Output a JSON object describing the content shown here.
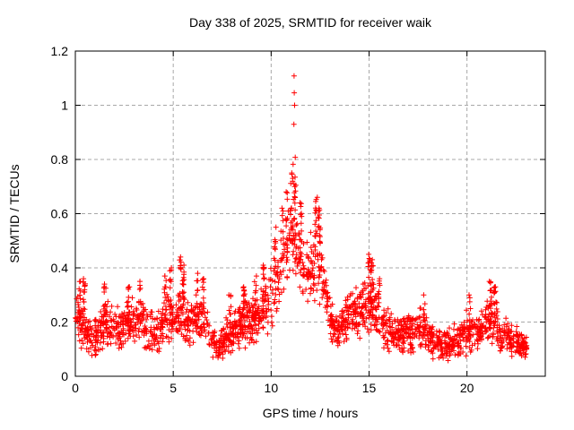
{
  "window": {
    "title": "Day 338 of 2025, SRMTID for receiver waik"
  },
  "colors": {
    "marker": "#ff0000",
    "border": "#000000",
    "grid": "#a8a8a8",
    "background": "#ffffff",
    "text": "#000000"
  },
  "chart_data": {
    "type": "scatter",
    "title": "Day 338 of 2025, SRMTID for receiver waik",
    "xlabel": "GPS time / hours",
    "ylabel": "SRMTID / TECUs",
    "xlim": [
      0,
      24
    ],
    "ylim": [
      0,
      1.2
    ],
    "xticks": [
      0,
      5,
      10,
      15,
      20
    ],
    "xtick_labels": [
      "0",
      "5",
      "10",
      "15",
      "20"
    ],
    "yticks": [
      0,
      0.2,
      0.4,
      0.6,
      0.8,
      1.0,
      1.2
    ],
    "ytick_labels": [
      "0",
      "0.2",
      "0.4",
      "0.6",
      "0.8",
      "1",
      "1.2"
    ],
    "grid": true,
    "grid_style": "dashed",
    "legend": false,
    "marker": {
      "symbol": "plus",
      "color": "#ff0000",
      "size": 7
    },
    "series_name": "SRMTID",
    "time_coverage_hours": [
      0,
      23.05
    ],
    "peak": {
      "t": 11.17,
      "value": 1.11
    },
    "point_count_estimate": 2300,
    "render_seed": 1338,
    "base_point_count": 2000,
    "band_envelope": [
      [
        0.0,
        0.1,
        0.31
      ],
      [
        0.5,
        0.1,
        0.28
      ],
      [
        0.9,
        0.07,
        0.2
      ],
      [
        1.3,
        0.1,
        0.26
      ],
      [
        1.6,
        0.11,
        0.3
      ],
      [
        2.0,
        0.1,
        0.24
      ],
      [
        2.4,
        0.1,
        0.27
      ],
      [
        2.8,
        0.11,
        0.28
      ],
      [
        3.2,
        0.11,
        0.3
      ],
      [
        3.6,
        0.09,
        0.26
      ],
      [
        4.0,
        0.08,
        0.24
      ],
      [
        4.5,
        0.1,
        0.31
      ],
      [
        5.0,
        0.1,
        0.28
      ],
      [
        5.4,
        0.12,
        0.36
      ],
      [
        5.8,
        0.1,
        0.27
      ],
      [
        6.2,
        0.11,
        0.33
      ],
      [
        6.6,
        0.1,
        0.28
      ],
      [
        7.0,
        0.07,
        0.2
      ],
      [
        7.3,
        0.06,
        0.15
      ],
      [
        7.7,
        0.08,
        0.21
      ],
      [
        8.2,
        0.09,
        0.25
      ],
      [
        8.7,
        0.1,
        0.28
      ],
      [
        9.1,
        0.11,
        0.3
      ],
      [
        9.5,
        0.13,
        0.32
      ],
      [
        10.0,
        0.17,
        0.4
      ],
      [
        10.4,
        0.24,
        0.5
      ],
      [
        10.8,
        0.33,
        0.6
      ],
      [
        11.1,
        0.38,
        0.65
      ],
      [
        11.4,
        0.33,
        0.6
      ],
      [
        11.8,
        0.27,
        0.53
      ],
      [
        12.1,
        0.26,
        0.52
      ],
      [
        12.4,
        0.28,
        0.58
      ],
      [
        12.7,
        0.22,
        0.45
      ],
      [
        13.0,
        0.13,
        0.3
      ],
      [
        13.4,
        0.1,
        0.22
      ],
      [
        13.8,
        0.12,
        0.28
      ],
      [
        14.2,
        0.14,
        0.32
      ],
      [
        14.6,
        0.15,
        0.35
      ],
      [
        15.0,
        0.15,
        0.4
      ],
      [
        15.4,
        0.12,
        0.34
      ],
      [
        15.8,
        0.1,
        0.28
      ],
      [
        16.2,
        0.08,
        0.23
      ],
      [
        16.7,
        0.08,
        0.22
      ],
      [
        17.2,
        0.09,
        0.24
      ],
      [
        17.6,
        0.1,
        0.26
      ],
      [
        18.0,
        0.08,
        0.22
      ],
      [
        18.5,
        0.06,
        0.18
      ],
      [
        19.0,
        0.06,
        0.17
      ],
      [
        19.5,
        0.06,
        0.2
      ],
      [
        20.0,
        0.08,
        0.24
      ],
      [
        20.5,
        0.08,
        0.22
      ],
      [
        21.0,
        0.1,
        0.28
      ],
      [
        21.3,
        0.1,
        0.31
      ],
      [
        21.7,
        0.08,
        0.24
      ],
      [
        22.1,
        0.08,
        0.22
      ],
      [
        22.6,
        0.07,
        0.18
      ],
      [
        23.05,
        0.07,
        0.15
      ]
    ],
    "spike_streaks": [
      [
        0.25,
        0.35
      ],
      [
        0.45,
        0.36
      ],
      [
        1.5,
        0.34
      ],
      [
        2.7,
        0.33
      ],
      [
        3.3,
        0.35
      ],
      [
        4.6,
        0.37
      ],
      [
        4.85,
        0.4
      ],
      [
        5.35,
        0.44
      ],
      [
        5.5,
        0.41
      ],
      [
        6.2,
        0.38
      ],
      [
        6.5,
        0.36
      ],
      [
        7.9,
        0.3
      ],
      [
        8.6,
        0.33
      ],
      [
        9.2,
        0.37
      ],
      [
        9.6,
        0.41
      ],
      [
        10.2,
        0.55
      ],
      [
        10.55,
        0.62
      ],
      [
        10.8,
        0.68
      ],
      [
        11.05,
        0.75
      ],
      [
        11.2,
        0.71
      ],
      [
        11.5,
        0.64
      ],
      [
        12.3,
        0.66
      ],
      [
        12.45,
        0.62
      ],
      [
        15.0,
        0.45
      ],
      [
        15.15,
        0.43
      ],
      [
        15.5,
        0.36
      ],
      [
        17.8,
        0.3
      ],
      [
        20.15,
        0.3
      ],
      [
        21.2,
        0.35
      ],
      [
        21.4,
        0.33
      ]
    ],
    "outlier_points": [
      [
        11.17,
        1.108
      ],
      [
        11.18,
        1.046
      ],
      [
        11.2,
        1.0
      ],
      [
        11.16,
        0.93
      ],
      [
        11.23,
        0.808
      ],
      [
        11.12,
        0.782
      ],
      [
        11.06,
        0.745
      ],
      [
        11.22,
        0.735
      ],
      [
        11.1,
        0.72
      ],
      [
        11.26,
        0.705
      ]
    ]
  }
}
